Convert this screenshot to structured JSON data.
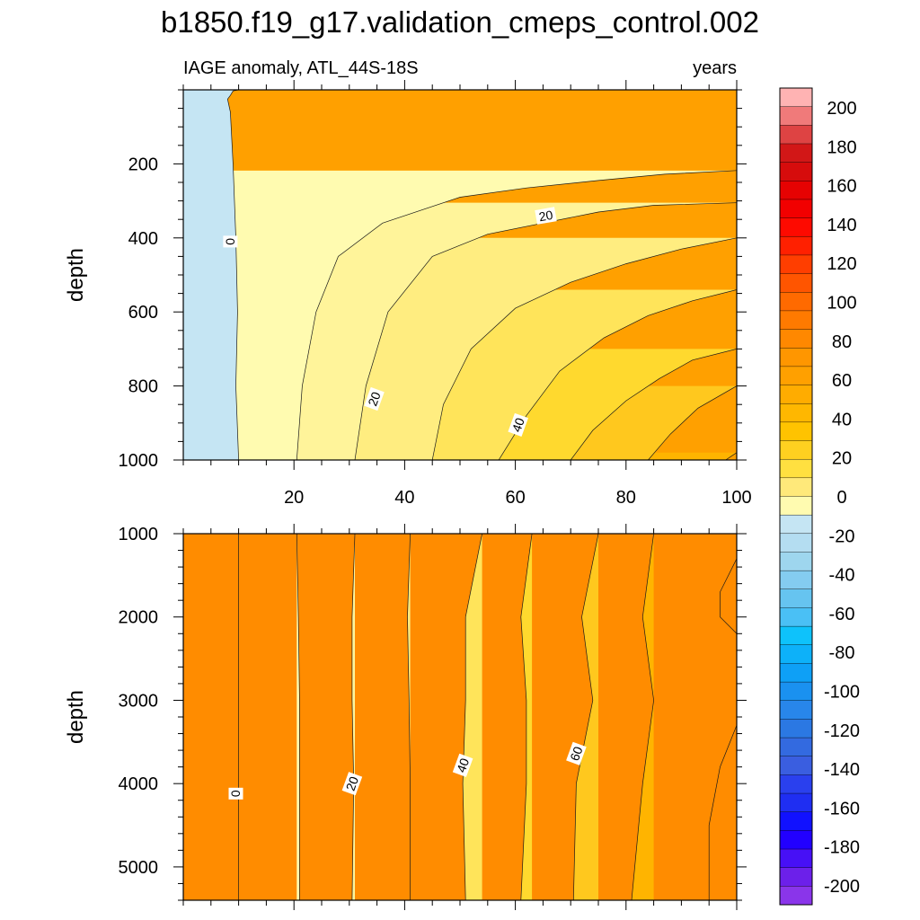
{
  "chart_data": {
    "type": "contour",
    "title": "b1850.f19_g17.validation_cmeps_control.002",
    "subtitle_left": "IAGE anomaly, ATL_44S-18S",
    "subtitle_right": "years",
    "xlim": [
      0,
      100
    ],
    "x_ticks": [
      20,
      40,
      60,
      80,
      100
    ],
    "contour_levels": [
      0,
      10,
      20,
      30,
      40,
      50,
      60,
      70,
      80
    ],
    "panels": [
      {
        "name": "upper",
        "ylabel": "depth",
        "ylim": [
          0,
          1000
        ],
        "y_ticks": [
          200,
          400,
          600,
          800,
          1000
        ],
        "contours": [
          {
            "level": 0,
            "x": [
              10,
              9.5,
              9.8,
              9.5,
              9.0,
              8.5,
              8.0,
              8.5,
              9.0,
              10
            ],
            "y": [
              1000,
              800,
              600,
              400,
              200,
              60,
              25,
              15,
              3,
              0
            ]
          },
          {
            "level": 10,
            "x": [
              20.5,
              21.5,
              24,
              28,
              36,
              50,
              62,
              75,
              87,
              100
            ],
            "y": [
              1000,
              800,
              600,
              450,
              360,
              290,
              265,
              245,
              228,
              218
            ]
          },
          {
            "level": 20,
            "x": [
              31,
              33,
              37,
              45,
              55,
              65,
              75,
              85,
              100
            ],
            "y": [
              1000,
              800,
              600,
              450,
              390,
              360,
              330,
              312,
              305
            ]
          },
          {
            "level": 30,
            "x": [
              45,
              47,
              52,
              60,
              70,
              80,
              90,
              100
            ],
            "y": [
              1000,
              850,
              700,
              590,
              520,
              470,
              430,
              400
            ]
          },
          {
            "level": 40,
            "x": [
              57,
              62,
              68,
              76,
              84,
              92,
              100
            ],
            "y": [
              1000,
              880,
              760,
              670,
              610,
              570,
              540
            ]
          },
          {
            "level": 50,
            "x": [
              70,
              74,
              80,
              86,
              92,
              100
            ],
            "y": [
              1000,
              920,
              840,
              780,
              730,
              700
            ]
          },
          {
            "level": 60,
            "x": [
              84,
              88,
              93,
              100
            ],
            "y": [
              1000,
              930,
              860,
              800
            ]
          },
          {
            "level": 70,
            "x": [
              98,
              100
            ],
            "y": [
              1000,
              980
            ]
          }
        ],
        "contour_labels": [
          {
            "text": "0",
            "x": 8.5,
            "y": 410
          },
          {
            "text": "20",
            "x": 34.5,
            "y": 835
          },
          {
            "text": "20",
            "x": 65.5,
            "y": 340
          },
          {
            "text": "40",
            "x": 60.5,
            "y": 905
          }
        ]
      },
      {
        "name": "lower",
        "ylabel": "depth",
        "ylim": [
          1000,
          5400
        ],
        "y_ticks": [
          1000,
          2000,
          3000,
          4000,
          5000
        ],
        "contours": [
          {
            "level": 0,
            "x": [
              10,
              10,
              10,
              10,
              10
            ],
            "y": [
              1000,
              2000,
              3000,
              4000,
              5400
            ]
          },
          {
            "level": 10,
            "x": [
              20.5,
              20.8,
              21,
              21,
              21
            ],
            "y": [
              1000,
              2000,
              3000,
              4000,
              5400
            ]
          },
          {
            "level": 20,
            "x": [
              31,
              30.5,
              30.5,
              30.8,
              30.5
            ],
            "y": [
              1000,
              2000,
              3000,
              4000,
              5400
            ]
          },
          {
            "level": 30,
            "x": [
              41,
              40.5,
              40.8,
              41,
              41
            ],
            "y": [
              1000,
              2000,
              3000,
              4000,
              5400
            ]
          },
          {
            "level": 40,
            "x": [
              54,
              51,
              51,
              50.5,
              51
            ],
            "y": [
              1000,
              2000,
              3000,
              4000,
              5400
            ]
          },
          {
            "level": 50,
            "x": [
              63,
              61,
              62,
              62,
              61
            ],
            "y": [
              1000,
              2000,
              3000,
              4000,
              5400
            ]
          },
          {
            "level": 60,
            "x": [
              75,
              72,
              74,
              71,
              70.5
            ],
            "y": [
              1000,
              2000,
              3000,
              4000,
              5400
            ]
          },
          {
            "level": 70,
            "x": [
              85,
              83,
              85,
              83,
              81
            ],
            "y": [
              1000,
              2000,
              3000,
              4000,
              5400
            ]
          },
          {
            "level": 80,
            "x": [
              100,
              97,
              97,
              100
            ],
            "y": [
              1300,
              1700,
              2000,
              2200
            ]
          },
          {
            "level": 80,
            "x": [
              100,
              97,
              95,
              95
            ],
            "y": [
              3300,
              3800,
              4500,
              5400
            ]
          }
        ],
        "contour_labels": [
          {
            "text": "0",
            "x": 9.5,
            "y": 4120
          },
          {
            "text": "20",
            "x": 30.5,
            "y": 4000
          },
          {
            "text": "40",
            "x": 50.5,
            "y": 3780
          },
          {
            "text": "60",
            "x": 71,
            "y": 3640
          }
        ]
      }
    ],
    "colorbar": {
      "labels": [
        "200",
        "180",
        "160",
        "140",
        "120",
        "100",
        "80",
        "60",
        "40",
        "20",
        "0",
        "-20",
        "-40",
        "-60",
        "-80",
        "-100",
        "-120",
        "-140",
        "-160",
        "-180",
        "-200"
      ],
      "colors": [
        "#ffb3b3",
        "#f07a7a",
        "#de4343",
        "#d21717",
        "#d60c0c",
        "#e60202",
        "#f20000",
        "#fe0a00",
        "#ff2000",
        "#ff3e00",
        "#ff5500",
        "#ff6a00",
        "#ff7a00",
        "#ff8800",
        "#ff9600",
        "#ffa000",
        "#ffac00",
        "#ffb700",
        "#ffc300",
        "#ffd020",
        "#ffe040",
        "#ffe97a",
        "#fffbb0",
        "#c5e5f3",
        "#b4ddf1",
        "#9ed6ee",
        "#84ccf0",
        "#66c4f0",
        "#4ac0f5",
        "#0ec2fb",
        "#0db1f9",
        "#0ea0f6",
        "#1a91f0",
        "#2886ea",
        "#2b78e3",
        "#336ae0",
        "#3a5ee0",
        "#2a40ee",
        "#1f2ef2",
        "#1111ff",
        "#2200ff",
        "#4710f6",
        "#6c20ea",
        "#8a35ea"
      ]
    },
    "fill_colors": {
      "below0": "#c5e5f3",
      "bands": [
        "#fffbb0",
        "#fff49a",
        "#ffed80",
        "#ffe45a",
        "#ffd92e",
        "#ffc81e",
        "#ffb400",
        "#ffa000",
        "#ff8c00"
      ]
    }
  }
}
